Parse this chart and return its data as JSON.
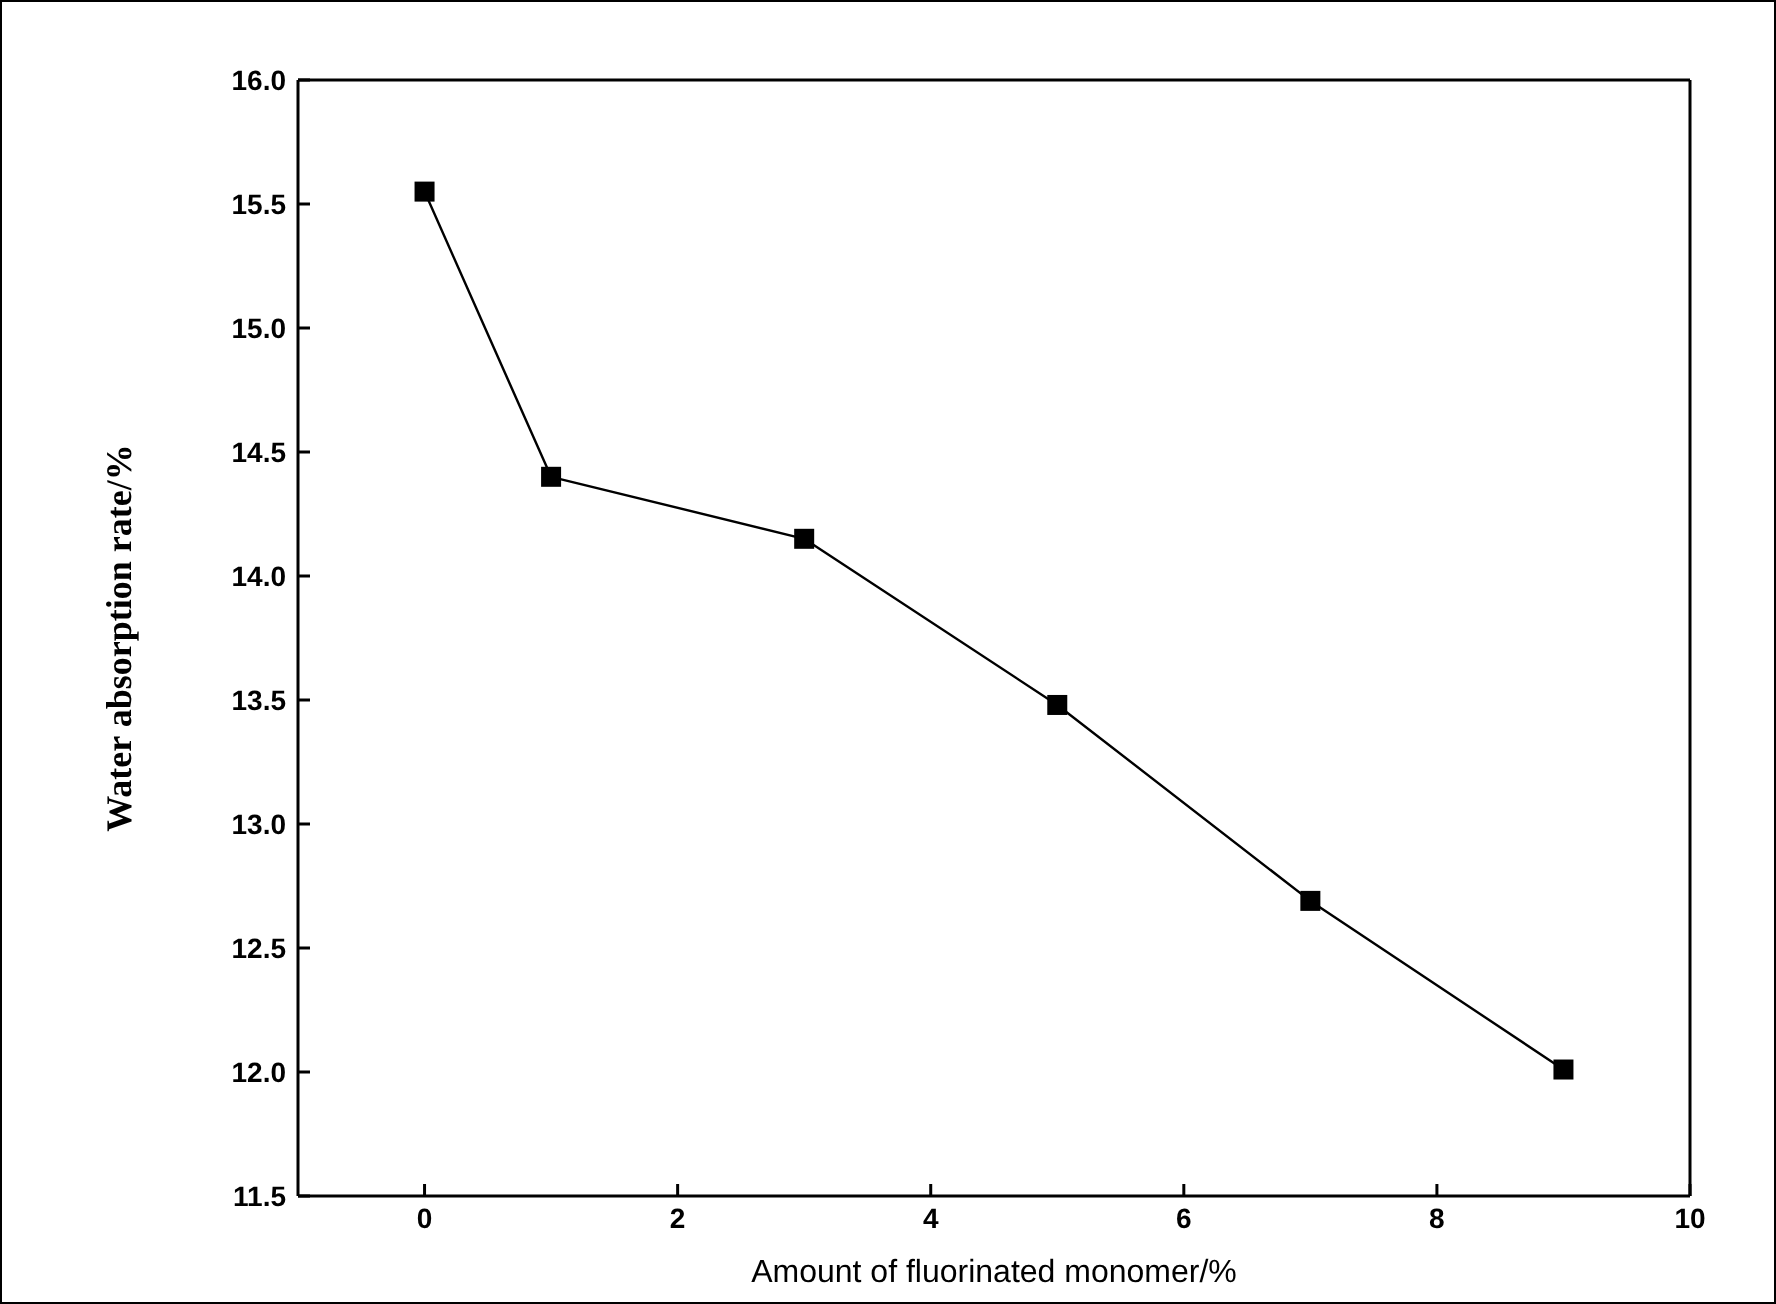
{
  "chart_data": {
    "type": "line",
    "xlabel": "Amount of fluorinated monomer/%",
    "ylabel": "Water absorption rate/%",
    "x": [
      0,
      1,
      3,
      5,
      7,
      9
    ],
    "series": [
      {
        "color": "#000000",
        "values": [
          15.55,
          14.4,
          14.15,
          13.48,
          12.69,
          12.01
        ]
      }
    ],
    "xlim": [
      -1,
      10
    ],
    "xticks": [
      0,
      2,
      4,
      6,
      8,
      10
    ],
    "ylim": [
      11.5,
      16.0
    ],
    "yticks": [
      {
        "value": 11.5,
        "label": "11.5"
      },
      {
        "value": 12,
        "label": "12.0"
      },
      {
        "value": 12.5,
        "label": "12.5"
      },
      {
        "value": 13,
        "label": "13.0"
      },
      {
        "value": 13.5,
        "label": "13.5"
      },
      {
        "value": 14,
        "label": "14.0"
      },
      {
        "value": 14.5,
        "label": "14.5"
      },
      {
        "value": 15,
        "label": "15.0"
      },
      {
        "value": 15.5,
        "label": "15.5"
      },
      {
        "value": 16,
        "label": "16.0"
      }
    ],
    "grid": false,
    "legend": false,
    "marker": "square",
    "line_style": "solid"
  }
}
